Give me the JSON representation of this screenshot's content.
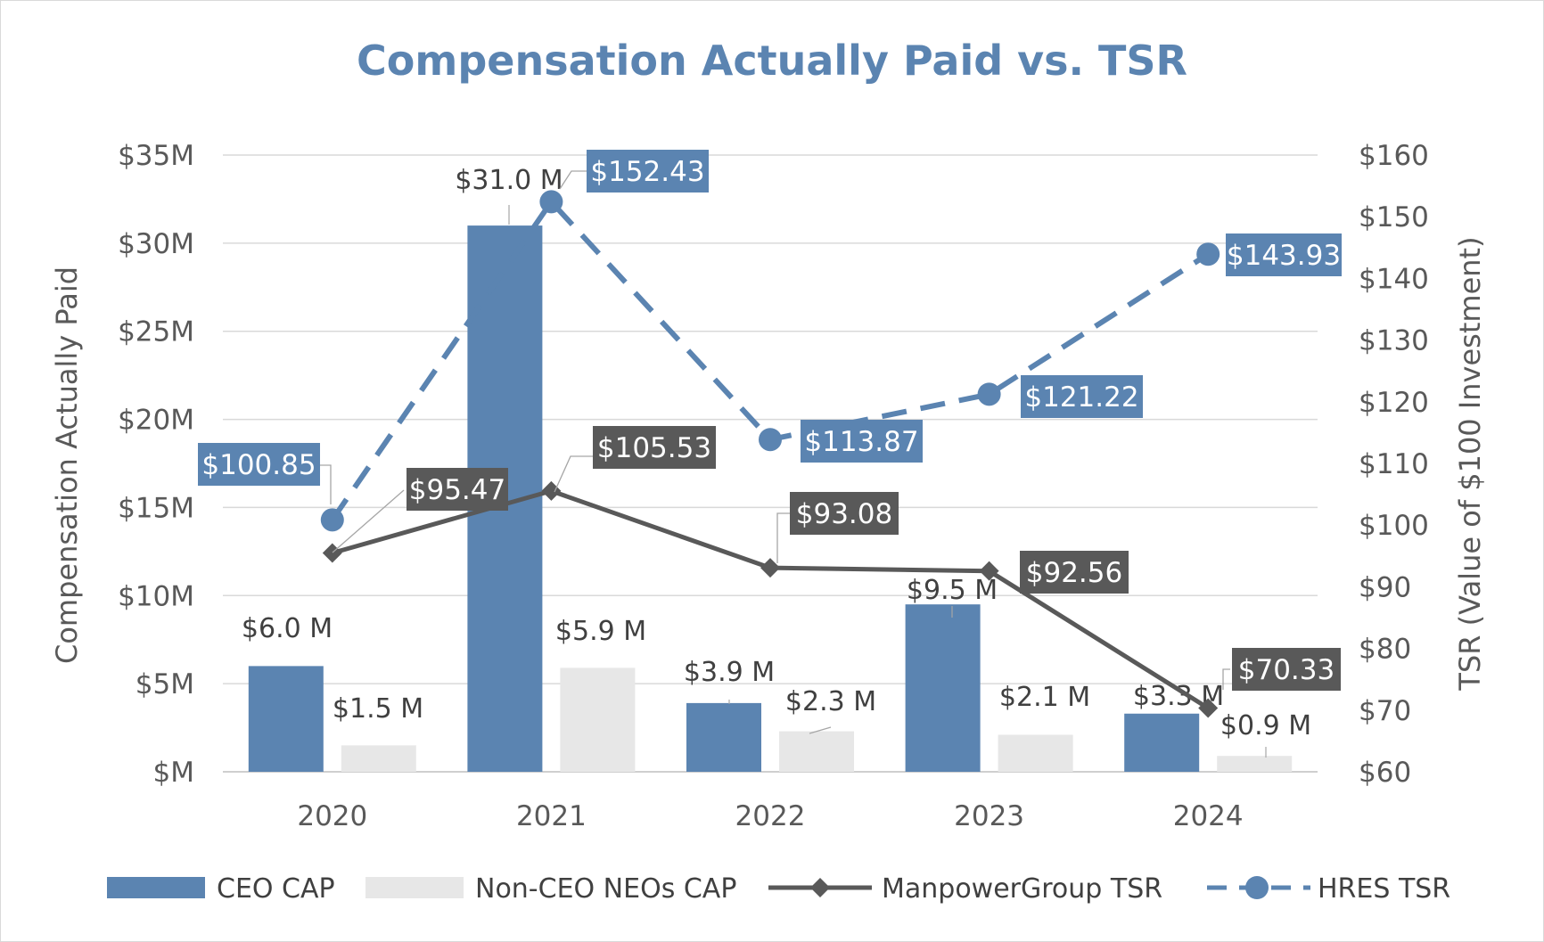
{
  "chart_data": {
    "type": "bar",
    "title": "Compensation Actually Paid vs. TSR",
    "categories": [
      "2020",
      "2021",
      "2022",
      "2023",
      "2024"
    ],
    "ylabel": "Compensation Actually Paid",
    "y2label": "TSR (Value of $100 Investment)",
    "ylim": [
      0,
      35
    ],
    "y2lim": [
      60,
      160
    ],
    "y_ticks": [
      "$M",
      "$5M",
      "$10M",
      "$15M",
      "$20M",
      "$25M",
      "$30M",
      "$35M"
    ],
    "y2_ticks": [
      "$60",
      "$70",
      "$80",
      "$90",
      "$100",
      "$110",
      "$120",
      "$130",
      "$140",
      "$150",
      "$160"
    ],
    "legend_position": "bottom",
    "series": [
      {
        "name": "CEO CAP",
        "kind": "bar",
        "axis": "left",
        "color": "#5b84b1",
        "values": [
          6.0,
          31.0,
          3.9,
          9.5,
          3.3
        ],
        "labels": [
          "$6.0 M",
          "$31.0 M",
          "$3.9 M",
          "$9.5 M",
          "$3.3 M"
        ]
      },
      {
        "name": "Non-CEO NEOs CAP",
        "kind": "bar",
        "axis": "left",
        "color": "#e7e7e7",
        "values": [
          1.5,
          5.9,
          2.3,
          2.1,
          0.9
        ],
        "labels": [
          "$1.5 M",
          "$5.9 M",
          "$2.3 M",
          "$2.1 M",
          "$0.9 M"
        ]
      },
      {
        "name": "ManpowerGroup TSR",
        "kind": "line",
        "axis": "right",
        "color": "#595959",
        "values": [
          95.47,
          105.53,
          93.08,
          92.56,
          70.33
        ],
        "labels": [
          "$95.47",
          "$105.53",
          "$93.08",
          "$92.56",
          "$70.33"
        ]
      },
      {
        "name": "HRES TSR",
        "kind": "line-dashed",
        "axis": "right",
        "color": "#5b84b1",
        "values": [
          100.85,
          152.43,
          113.87,
          121.22,
          143.93
        ],
        "labels": [
          "$100.85",
          "$152.43",
          "$113.87",
          "$121.22",
          "$143.93"
        ]
      }
    ]
  }
}
